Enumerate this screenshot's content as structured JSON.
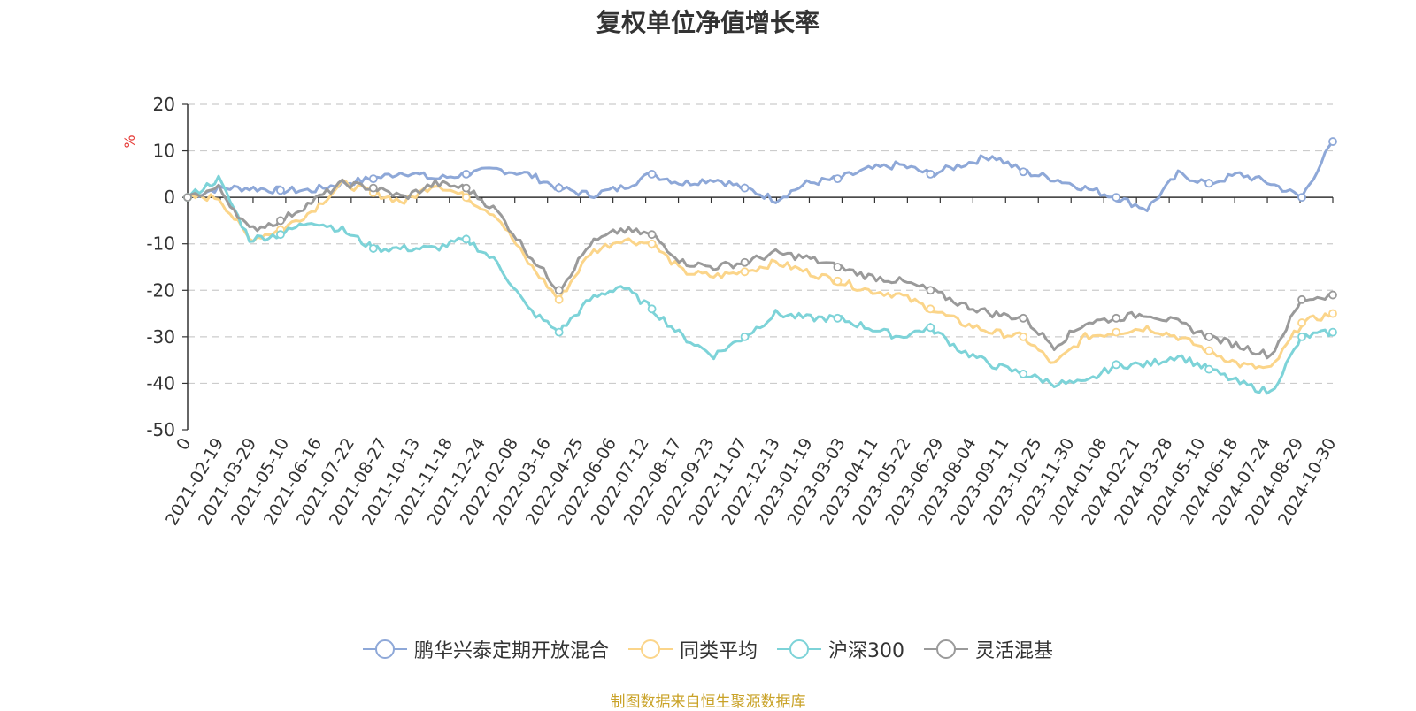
{
  "title": "复权单位净值增长率",
  "source_note": "制图数据来自恒生聚源数据库",
  "chart_data": {
    "type": "line",
    "title": "复权单位净值增长率",
    "ylabel": "%",
    "ylim": [
      -50,
      20
    ],
    "yticks": [
      20,
      10,
      0,
      -10,
      -20,
      -30,
      -40,
      -50
    ],
    "grid": true,
    "legend_position": "bottom",
    "x_tick_labels": [
      "0",
      "2021-02-19",
      "2021-03-29",
      "2021-05-10",
      "2021-06-16",
      "2021-07-22",
      "2021-08-27",
      "2021-10-13",
      "2021-11-18",
      "2021-12-24",
      "2022-02-08",
      "2022-03-16",
      "2022-04-25",
      "2022-06-06",
      "2022-07-12",
      "2022-08-17",
      "2022-09-23",
      "2022-11-07",
      "2022-12-13",
      "2023-01-19",
      "2023-03-03",
      "2023-04-11",
      "2023-05-22",
      "2023-06-29",
      "2023-08-04",
      "2023-09-11",
      "2023-10-25",
      "2023-11-30",
      "2024-01-08",
      "2024-02-21",
      "2024-03-28",
      "2024-05-10",
      "2024-06-18",
      "2024-07-24",
      "2024-08-29",
      "2024-10-30"
    ],
    "series": [
      {
        "name": "鹏华兴泰定期开放混合",
        "color": "#8ea8d8",
        "values": [
          0,
          2,
          2,
          1.5,
          1.5,
          3,
          4,
          5.5,
          4,
          5,
          6,
          5,
          2,
          0.5,
          2,
          5,
          3,
          4,
          2,
          -0.5,
          3,
          4,
          6,
          7,
          5,
          7,
          9,
          5.5,
          4,
          2,
          0,
          -2.5,
          5,
          3,
          5,
          3,
          0,
          12
        ]
      },
      {
        "name": "同类平均",
        "color": "#fbd58a",
        "values": [
          0,
          0,
          -9,
          -7,
          -3,
          3,
          1,
          -1,
          3,
          0,
          -4,
          -14,
          -22,
          -12,
          -9,
          -10,
          -16,
          -17,
          -16,
          -14,
          -16,
          -18,
          -20,
          -21,
          -24,
          -27,
          -29,
          -30,
          -36,
          -30,
          -29,
          -28,
          -30,
          -33,
          -36,
          -37,
          -27,
          -25
        ]
      },
      {
        "name": "沪深300",
        "color": "#7dd3d8",
        "values": [
          0,
          4,
          -9,
          -8,
          -5,
          -7,
          -11,
          -11,
          -11,
          -9,
          -14,
          -24,
          -29,
          -22,
          -19,
          -24,
          -30,
          -34,
          -30,
          -25,
          -26,
          -26,
          -28,
          -30,
          -28,
          -33,
          -36,
          -38,
          -40,
          -40,
          -36,
          -36,
          -34,
          -37,
          -40,
          -42,
          -30,
          -29
        ]
      },
      {
        "name": "灵活混基",
        "color": "#9a9a9a",
        "values": [
          0,
          2,
          -7,
          -5,
          -1,
          3,
          2,
          0,
          3,
          2,
          -3,
          -12,
          -20,
          -10,
          -7,
          -8,
          -14,
          -15,
          -14,
          -12,
          -13,
          -15,
          -17,
          -18,
          -20,
          -23,
          -25,
          -26,
          -32,
          -27,
          -26,
          -25,
          -27,
          -30,
          -32,
          -34,
          -22,
          -21
        ]
      }
    ]
  }
}
